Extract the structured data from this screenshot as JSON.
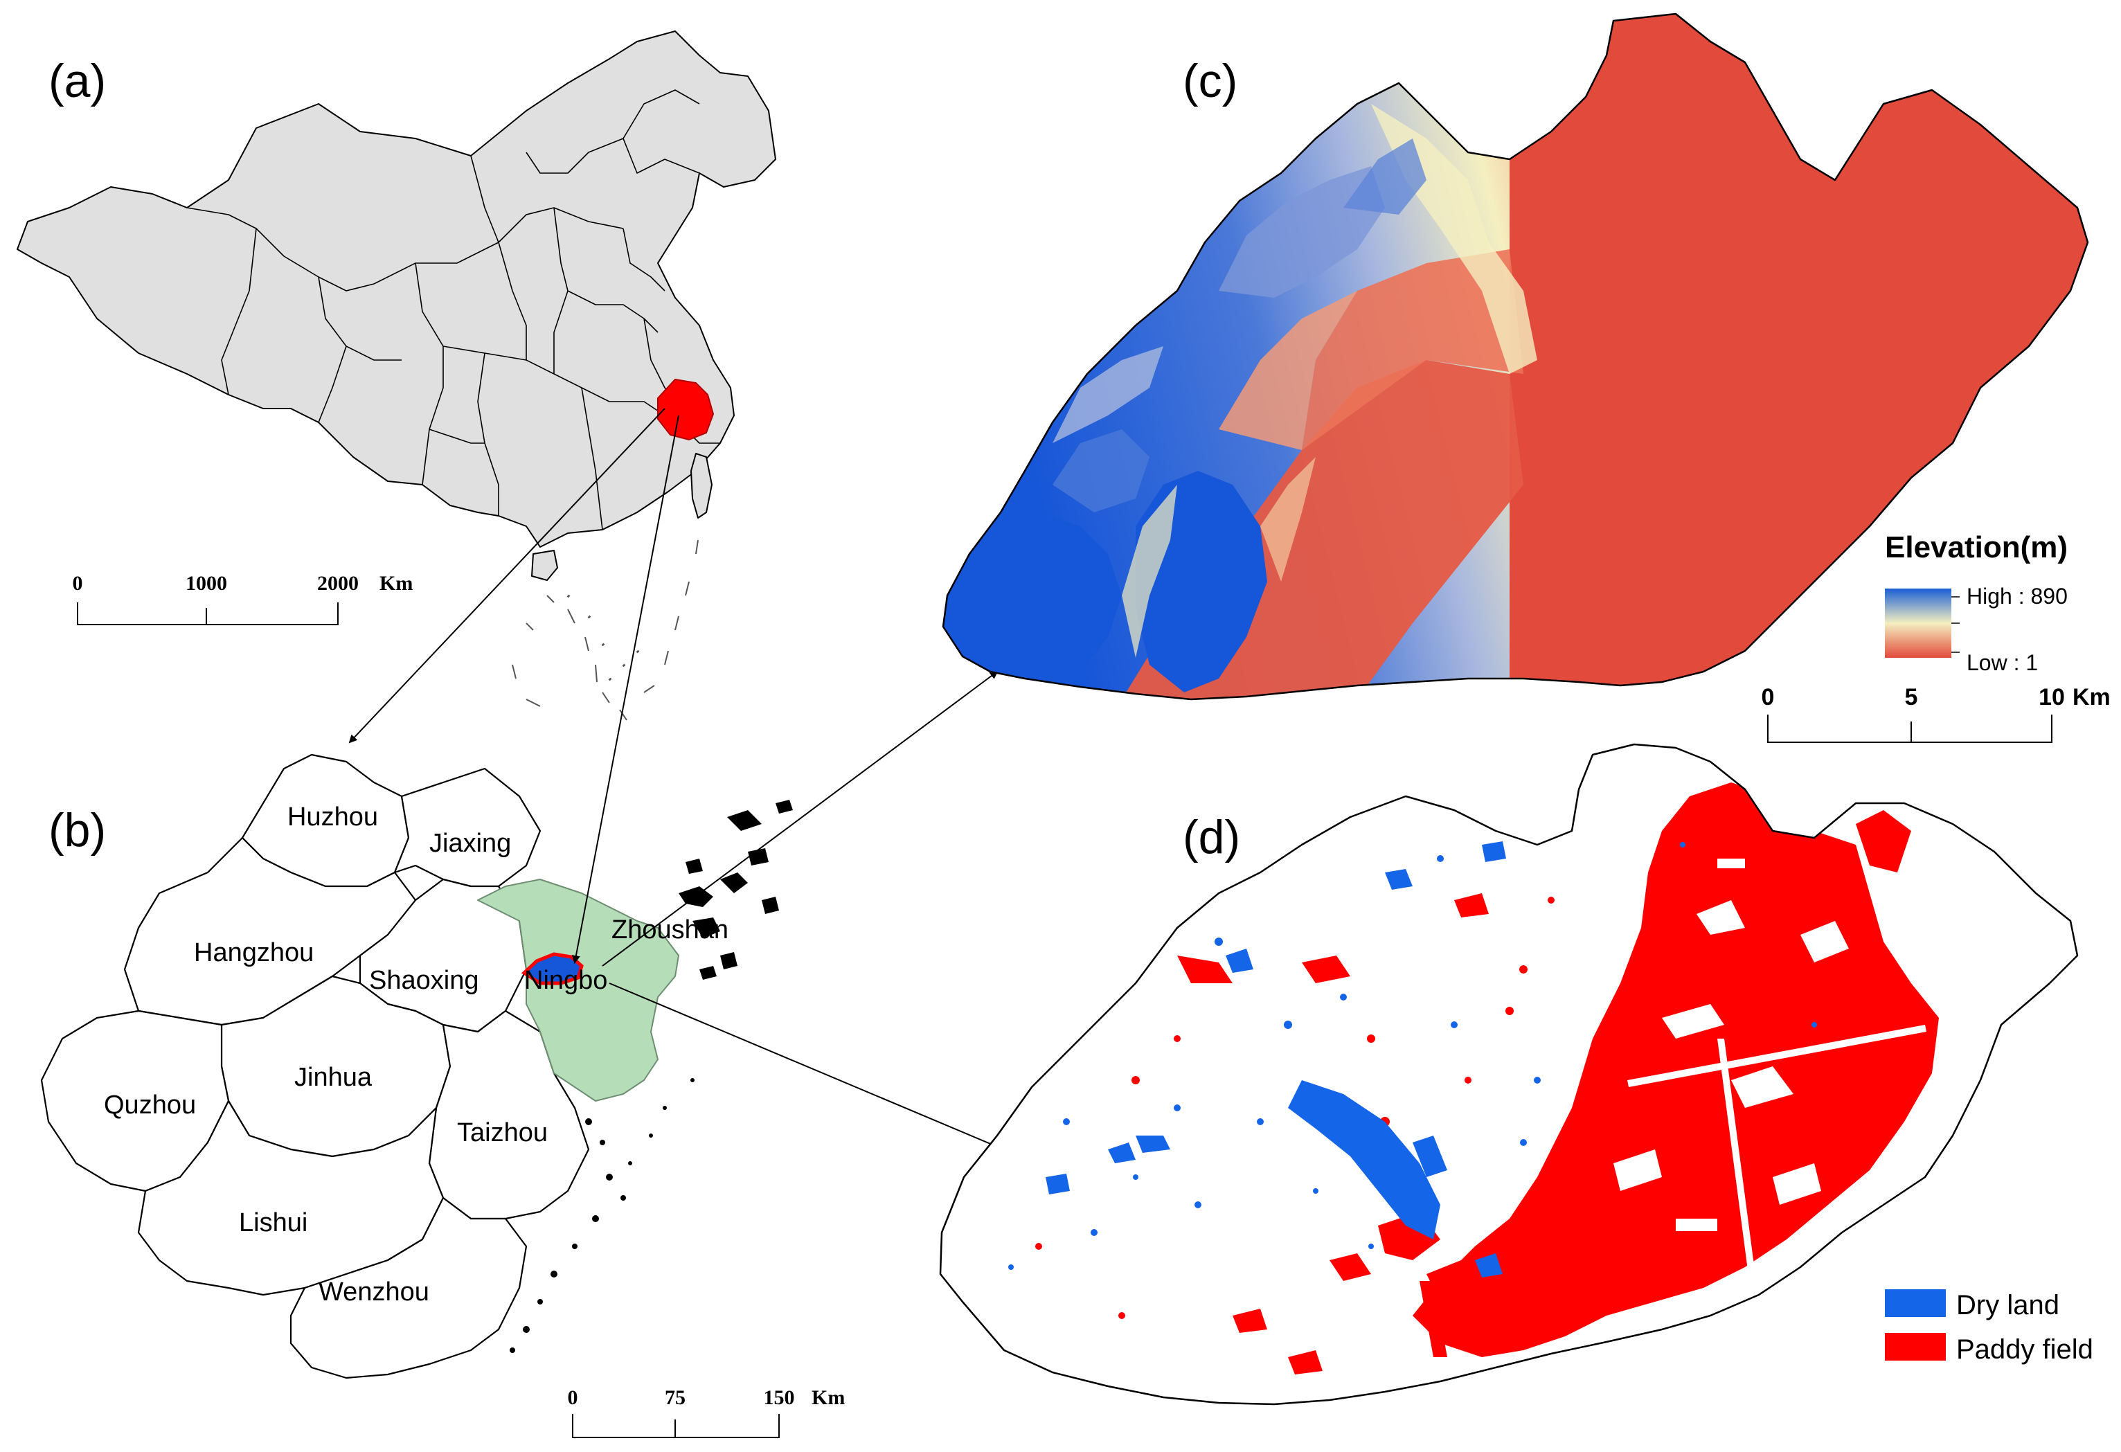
{
  "panels": {
    "a": {
      "label": "(a)",
      "scalebar": {
        "ticks": [
          "0",
          "1000",
          "2000"
        ],
        "unit": "Km"
      }
    },
    "b": {
      "label": "(b)",
      "cities": [
        {
          "name": "Huzhou"
        },
        {
          "name": "Jiaxing"
        },
        {
          "name": "Hangzhou"
        },
        {
          "name": "Shaoxing"
        },
        {
          "name": "Ningbo"
        },
        {
          "name": "Zhoushan"
        },
        {
          "name": "Jinhua"
        },
        {
          "name": "Quzhou"
        },
        {
          "name": "Taizhou"
        },
        {
          "name": "Lishui"
        },
        {
          "name": "Wenzhou"
        }
      ],
      "scalebar": {
        "ticks": [
          "0",
          "75",
          "150"
        ],
        "unit": "Km"
      }
    },
    "c": {
      "label": "(c)",
      "legend": {
        "title": "Elevation(m)",
        "high": "High : 890",
        "low": "Low : 1",
        "colors": {
          "high": "#1a5fd6",
          "mid": "#f5efc0",
          "low": "#e24a3b"
        }
      },
      "scalebar": {
        "ticks": [
          "0",
          "5",
          "10"
        ],
        "unit": "Km"
      }
    },
    "d": {
      "label": "(d)",
      "legend": [
        {
          "label": "Dry land",
          "color": "#1565e8"
        },
        {
          "label": "Paddy field",
          "color": "#ff0000"
        }
      ]
    }
  },
  "colors": {
    "china_fill": "#e0e0e0",
    "ningbo_fill": "#b5ddb8",
    "study_area_fill": "#1656d8",
    "highlight": "#ff0000"
  }
}
